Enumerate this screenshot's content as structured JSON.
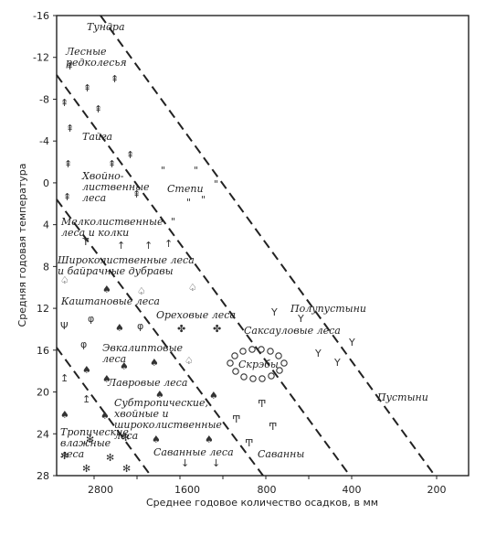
{
  "chart_data": {
    "type": "diagram",
    "xlabel": "Среднее годовое количество осадков, в мм",
    "ylabel": "Средняя годовая температура",
    "x_ticks": [
      2800,
      2400,
      2000,
      1600,
      1200,
      800,
      400,
      200
    ],
    "y_ticks": [
      -16,
      -12,
      -8,
      -4,
      0,
      4,
      8,
      12,
      16,
      20,
      24,
      28
    ],
    "xlim": [
      3000,
      0
    ],
    "ylim": [
      -16,
      28
    ],
    "zone_labels": [
      {
        "id": "tundra",
        "text": [
          "Тундра"
        ]
      },
      {
        "id": "forest-tundra",
        "text": [
          "Лесные",
          "редколесья"
        ]
      },
      {
        "id": "taiga",
        "text": [
          "Тайга"
        ]
      },
      {
        "id": "mixed",
        "text": [
          "Хвойно-",
          "лиственные",
          "леса"
        ]
      },
      {
        "id": "steppe",
        "text": [
          "Степи"
        ]
      },
      {
        "id": "smallleaf",
        "text": [
          "Мелколиственные",
          "леса и колки"
        ]
      },
      {
        "id": "broadleaf",
        "text": [
          "Широколиственные леса",
          "и байрачные дубравы"
        ]
      },
      {
        "id": "chestnut",
        "text": [
          "Каштановые леса"
        ]
      },
      {
        "id": "walnut",
        "text": [
          "Ореховые леса"
        ]
      },
      {
        "id": "semidesert",
        "text": [
          "Полупустыни"
        ]
      },
      {
        "id": "saxaul",
        "text": [
          "Саксауловые леса"
        ]
      },
      {
        "id": "eucalyptus",
        "text": [
          "Эвкалиптовые",
          "леса"
        ]
      },
      {
        "id": "scrub",
        "text": [
          "Скрэбы"
        ]
      },
      {
        "id": "laurel",
        "text": [
          "Лавровые леса"
        ]
      },
      {
        "id": "subtropical",
        "text": [
          "Субтропические,",
          "хвойные и",
          "широколиственные",
          "леса"
        ]
      },
      {
        "id": "desert",
        "text": [
          "Пустыни"
        ]
      },
      {
        "id": "tropical",
        "text": [
          "Тропические",
          "влажные",
          "леса"
        ]
      },
      {
        "id": "savanna-forest",
        "text": [
          "Саванные леса"
        ]
      },
      {
        "id": "savanna",
        "text": [
          "Саванны"
        ]
      }
    ]
  }
}
